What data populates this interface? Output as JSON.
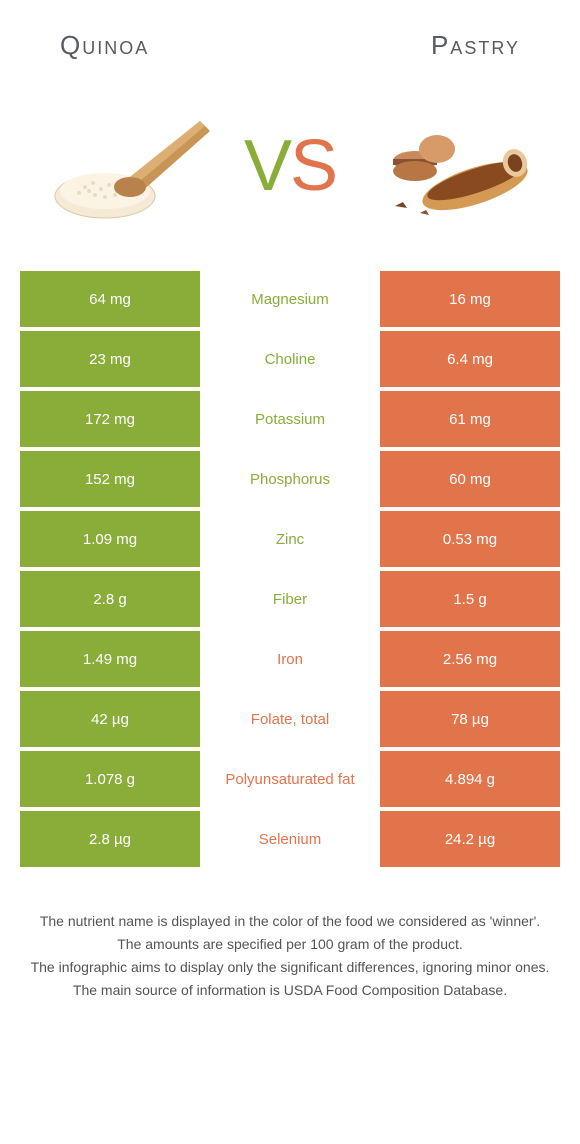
{
  "header": {
    "left_title": "Quinoa",
    "right_title": "Pastry"
  },
  "vs": {
    "v": "V",
    "s": "S"
  },
  "colors": {
    "quinoa": "#8aad3a",
    "pastry": "#e2744b",
    "row_bg_neutral": "#ffffff"
  },
  "rows": [
    {
      "label": "Magnesium",
      "left": "64 mg",
      "right": "16 mg",
      "winner": "left"
    },
    {
      "label": "Choline",
      "left": "23 mg",
      "right": "6.4 mg",
      "winner": "left"
    },
    {
      "label": "Potassium",
      "left": "172 mg",
      "right": "61 mg",
      "winner": "left"
    },
    {
      "label": "Phosphorus",
      "left": "152 mg",
      "right": "60 mg",
      "winner": "left"
    },
    {
      "label": "Zinc",
      "left": "1.09 mg",
      "right": "0.53 mg",
      "winner": "left"
    },
    {
      "label": "Fiber",
      "left": "2.8 g",
      "right": "1.5 g",
      "winner": "left"
    },
    {
      "label": "Iron",
      "left": "1.49 mg",
      "right": "2.56 mg",
      "winner": "right"
    },
    {
      "label": "Folate, total",
      "left": "42 µg",
      "right": "78 µg",
      "winner": "right"
    },
    {
      "label": "Polyunsaturated fat",
      "left": "1.078 g",
      "right": "4.894 g",
      "winner": "right"
    },
    {
      "label": "Selenium",
      "left": "2.8 µg",
      "right": "24.2 µg",
      "winner": "right"
    }
  ],
  "notes": [
    "The nutrient name is displayed in the color of the food we considered as 'winner'.",
    "The amounts are specified per 100 gram of the product.",
    "The infographic aims to display only the significant differences, ignoring minor ones.",
    "The main source of information is USDA Food Composition Database."
  ]
}
